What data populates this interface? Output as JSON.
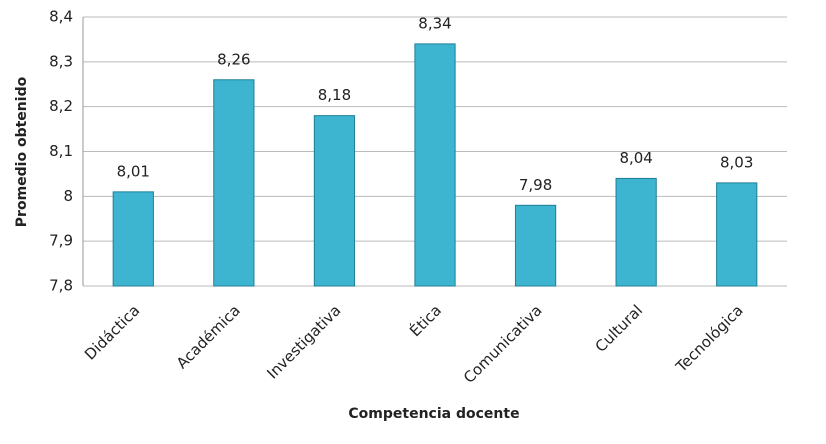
{
  "chart_data": {
    "type": "bar",
    "x_label": "Competencia docente",
    "y_label": "Promedio obtenido",
    "categories": [
      "Didáctica",
      "Académica",
      "Investigativa",
      "Ética",
      "Comunicativa",
      "Cultural",
      "Tecnológica"
    ],
    "values": [
      8.01,
      8.26,
      8.18,
      8.34,
      7.98,
      8.04,
      8.03
    ],
    "value_labels": [
      "8,01",
      "8,26",
      "8,18",
      "8,34",
      "7,98",
      "8,04",
      "8,03"
    ],
    "color": "#3db5d0",
    "ylim": [
      7.8,
      8.4
    ],
    "yticks": [
      {
        "value": 7.8,
        "label": "7,8"
      },
      {
        "value": 7.9,
        "label": "7,9"
      },
      8,
      {
        "value": 8.1,
        "label": "8,1"
      },
      {
        "value": 8.2,
        "label": "8,2"
      },
      {
        "value": 8.3,
        "label": "8,3"
      },
      {
        "value": 8.4,
        "label": "8,4"
      }
    ],
    "grid": true
  }
}
